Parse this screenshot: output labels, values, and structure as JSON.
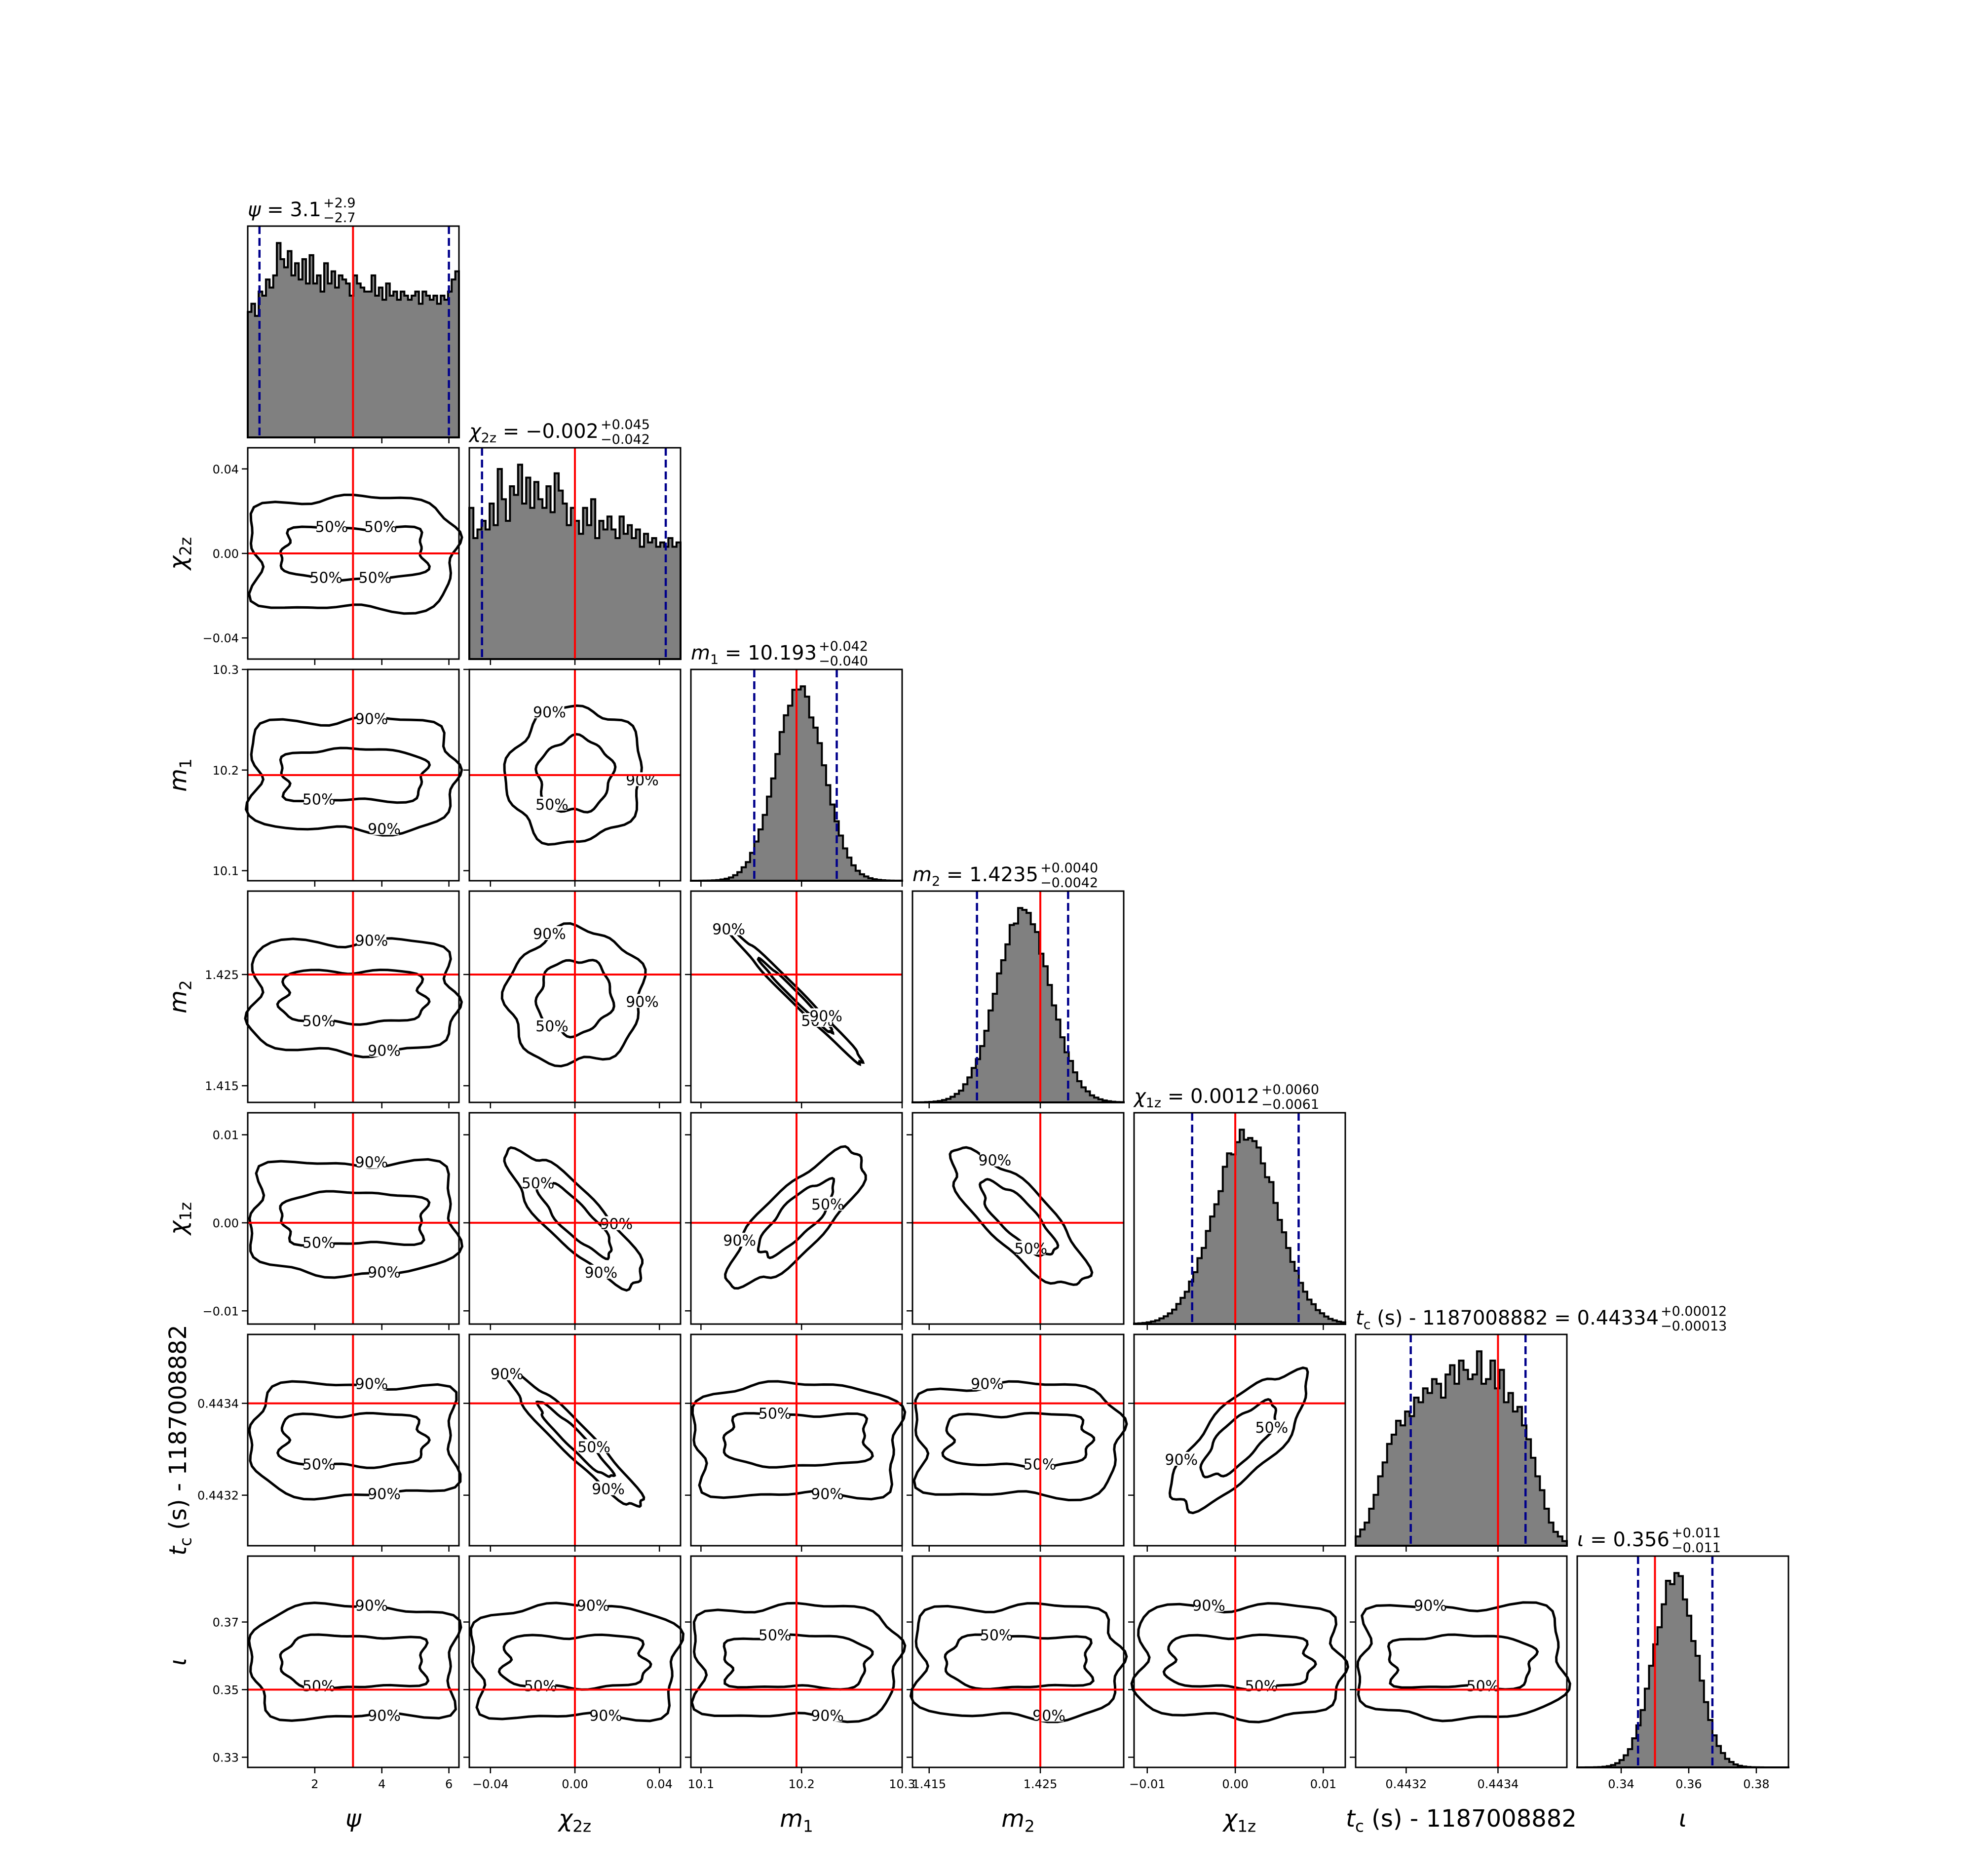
{
  "chart_data": {
    "type": "corner",
    "grid": false,
    "hist_fill": "#808080",
    "truth_color": "#ff0000",
    "interval_color": "#00008b",
    "contour_color": "#000000",
    "contour_levels": [
      "50%",
      "90%"
    ],
    "parameters": [
      {
        "key": "psi",
        "axis_label": "ψ",
        "title": {
          "main": "ψ = 3.1",
          "sup": "+2.9",
          "sub": "−2.7"
        },
        "range": [
          0.0,
          6.3
        ],
        "ticks": [
          2,
          4,
          6
        ],
        "tick_labels": [
          "2",
          "4",
          "6"
        ],
        "truth": 3.14,
        "interval": [
          0.35,
          6.0
        ],
        "hist": [
          0.62,
          0.66,
          0.6,
          0.72,
          0.7,
          0.78,
          0.74,
          0.8,
          0.96,
          0.88,
          0.84,
          0.92,
          0.8,
          0.86,
          0.78,
          0.88,
          0.76,
          0.9,
          0.76,
          0.8,
          0.72,
          0.86,
          0.76,
          0.82,
          0.74,
          0.8,
          0.78,
          0.76,
          0.7,
          0.8,
          0.76,
          0.74,
          0.72,
          0.72,
          0.8,
          0.7,
          0.74,
          0.68,
          0.76,
          0.7,
          0.72,
          0.68,
          0.72,
          0.7,
          0.68,
          0.7,
          0.72,
          0.66,
          0.72,
          0.7,
          0.68,
          0.7,
          0.66,
          0.7,
          0.68,
          0.72,
          0.78,
          0.82
        ]
      },
      {
        "key": "chi2z",
        "axis_label": "χ2z",
        "title": {
          "main": "χ2z = −0.002",
          "sup": "+0.045",
          "sub": "−0.042"
        },
        "range": [
          -0.05,
          0.05
        ],
        "ticks": [
          -0.04,
          0.0,
          0.04
        ],
        "tick_labels": [
          "−0.04",
          "0.00",
          "0.04"
        ],
        "truth": 0.0,
        "interval": [
          -0.044,
          0.043
        ],
        "hist": [
          0.7,
          0.56,
          0.6,
          0.64,
          0.6,
          0.72,
          0.62,
          0.88,
          0.74,
          0.64,
          0.8,
          0.76,
          0.9,
          0.72,
          0.84,
          0.7,
          0.82,
          0.74,
          0.7,
          0.8,
          0.68,
          0.86,
          0.78,
          0.72,
          0.62,
          0.7,
          0.64,
          0.58,
          0.7,
          0.62,
          0.74,
          0.56,
          0.64,
          0.6,
          0.66,
          0.6,
          0.56,
          0.66,
          0.58,
          0.62,
          0.56,
          0.6,
          0.52,
          0.58,
          0.54,
          0.56,
          0.52,
          0.54,
          0.52,
          0.56,
          0.52,
          0.54
        ]
      },
      {
        "key": "m1",
        "axis_label": "m1",
        "title": {
          "main": "m1 = 10.193",
          "sup": "+0.042",
          "sub": "−0.040"
        },
        "range": [
          10.09,
          10.3
        ],
        "ticks": [
          10.1,
          10.2,
          10.3
        ],
        "tick_labels": [
          "10.1",
          "10.2",
          "10.3"
        ],
        "truth": 10.195,
        "interval": [
          10.153,
          10.235
        ],
        "hist_center": 10.198,
        "hist_sigma": 0.024
      },
      {
        "key": "m2",
        "axis_label": "m2",
        "title": {
          "main": "m2 = 1.4235",
          "sup": "+0.0040",
          "sub": "−0.0042"
        },
        "range": [
          1.4135,
          1.4325
        ],
        "ticks": [
          1.415,
          1.425
        ],
        "tick_labels": [
          "1.415",
          "1.425"
        ],
        "truth": 1.425,
        "interval": [
          1.4193,
          1.4275
        ],
        "hist_center": 1.4235,
        "hist_sigma": 0.0024
      },
      {
        "key": "chi1z",
        "axis_label": "χ1z",
        "title": {
          "main": "χ1z = 0.0012",
          "sup": "+0.0060",
          "sub": "−0.0061"
        },
        "range": [
          -0.0115,
          0.0125
        ],
        "ticks": [
          -0.01,
          0.0,
          0.01
        ],
        "tick_labels": [
          "−0.01",
          "0.00",
          "0.01"
        ],
        "truth": 0.0,
        "interval": [
          -0.0049,
          0.0072
        ],
        "hist_center": 0.0012,
        "hist_sigma": 0.0036
      },
      {
        "key": "tc",
        "axis_label": "tc (s) - 1187008882",
        "title": {
          "main": "tc (s) - 1187008882 = 0.44334",
          "sup": "+0.00012",
          "sub": "−0.00013"
        },
        "range": [
          0.44309,
          0.44355
        ],
        "ticks": [
          0.4432,
          0.4434
        ],
        "tick_labels": [
          "0.4432",
          "0.4434"
        ],
        "truth": 0.4434,
        "interval": [
          0.44321,
          0.44346
        ],
        "hist": [
          0.04,
          0.07,
          0.1,
          0.16,
          0.22,
          0.3,
          0.36,
          0.44,
          0.48,
          0.54,
          0.52,
          0.58,
          0.56,
          0.64,
          0.62,
          0.68,
          0.66,
          0.72,
          0.7,
          0.64,
          0.74,
          0.78,
          0.7,
          0.8,
          0.76,
          0.72,
          0.74,
          0.84,
          0.7,
          0.72,
          0.8,
          0.68,
          0.76,
          0.62,
          0.66,
          0.58,
          0.6,
          0.52,
          0.46,
          0.38,
          0.3,
          0.24,
          0.16,
          0.1,
          0.06,
          0.04,
          0.02
        ]
      },
      {
        "key": "iota",
        "axis_label": "ι",
        "title": {
          "main": "ι = 0.356",
          "sup": "+0.011",
          "sub": "−0.011"
        },
        "range": [
          0.327,
          0.3895
        ],
        "ticks": [
          0.34,
          0.36,
          0.38
        ],
        "tick_labels": [
          "0.34",
          "0.36",
          "0.38"
        ],
        "truth": 0.35,
        "interval": [
          0.345,
          0.367
        ],
        "hist_center": 0.356,
        "hist_sigma": 0.0062
      }
    ],
    "panel_ticks": {
      "y": {
        "chi2z": [
          {
            "v": 0.04,
            "label": "0.04"
          },
          {
            "v": 0.0,
            "label": "0.00"
          },
          {
            "v": -0.04,
            "label": "−0.04"
          }
        ],
        "m1": [
          {
            "v": 10.3,
            "label": "10.3"
          },
          {
            "v": 10.2,
            "label": "10.2"
          },
          {
            "v": 10.1,
            "label": "10.1"
          }
        ],
        "m2": [
          {
            "v": 1.425,
            "label": "1.425"
          },
          {
            "v": 1.415,
            "label": "1.415"
          }
        ],
        "chi1z": [
          {
            "v": 0.01,
            "label": "0.01"
          },
          {
            "v": 0.0,
            "label": "0.00"
          },
          {
            "v": -0.01,
            "label": "−0.01"
          }
        ],
        "tc": [
          {
            "v": 0.4434,
            "label": "0.4434"
          },
          {
            "v": 0.4432,
            "label": "0.4432"
          }
        ],
        "iota": [
          {
            "v": 0.37,
            "label": "0.37"
          },
          {
            "v": 0.35,
            "label": "0.35"
          },
          {
            "v": 0.33,
            "label": "0.33"
          }
        ]
      }
    },
    "pairs": [
      {
        "x": "psi",
        "y": "chi2z",
        "corr": 0.0,
        "labels": [
          [
            "50%",
            0.5
          ],
          [
            "50%",
            0.5
          ],
          [
            "50%",
            0.5
          ],
          [
            "50%",
            0.5
          ]
        ]
      },
      {
        "x": "psi",
        "y": "m1",
        "corr": 0.0,
        "labels": [
          [
            "90%",
            0.9
          ],
          [
            "50%",
            0.5
          ],
          [
            "90%",
            0.9
          ]
        ]
      },
      {
        "x": "chi2z",
        "y": "m1",
        "corr": 0.05,
        "labels": [
          [
            "90%",
            0.9
          ],
          [
            "50%",
            0.5
          ],
          [
            "90%",
            0.9
          ]
        ]
      },
      {
        "x": "m1",
        "y": "m2",
        "corr": -0.99,
        "labels": [
          [
            "50%",
            0.5
          ],
          [
            "90%",
            0.9
          ],
          [
            "90%",
            0.9
          ]
        ]
      },
      {
        "x": "psi",
        "y": "m2",
        "corr": 0.0,
        "labels": [
          [
            "90%",
            0.9
          ],
          [
            "50%",
            0.5
          ],
          [
            "90%",
            0.9
          ]
        ]
      },
      {
        "x": "chi2z",
        "y": "m2",
        "corr": 0.05,
        "labels": [
          [
            "90%",
            0.9
          ],
          [
            "50%",
            0.5
          ],
          [
            "90%",
            0.9
          ]
        ]
      },
      {
        "x": "psi",
        "y": "chi1z",
        "corr": 0.0,
        "labels": [
          [
            "90%",
            0.9
          ],
          [
            "50%",
            0.5
          ],
          [
            "90%",
            0.9
          ]
        ]
      },
      {
        "x": "chi2z",
        "y": "chi1z",
        "corr": -0.85,
        "labels": [
          [
            "90%",
            0.9
          ],
          [
            "50%",
            0.5
          ],
          [
            "90%",
            0.9
          ]
        ]
      },
      {
        "x": "m1",
        "y": "chi1z",
        "corr": 0.8,
        "labels": [
          [
            "50%",
            0.5
          ],
          [
            "90%",
            0.9
          ]
        ]
      },
      {
        "x": "m2",
        "y": "chi1z",
        "corr": -0.8,
        "labels": [
          [
            "50%",
            0.5
          ],
          [
            "90%",
            0.9
          ]
        ]
      },
      {
        "x": "psi",
        "y": "tc",
        "corr": 0.0,
        "labels": [
          [
            "90%",
            0.9
          ],
          [
            "50%",
            0.5
          ],
          [
            "90%",
            0.9
          ]
        ]
      },
      {
        "x": "chi2z",
        "y": "tc",
        "corr": -0.95,
        "labels": [
          [
            "90%",
            0.9
          ],
          [
            "90%",
            0.9
          ],
          [
            "50%",
            0.5
          ]
        ]
      },
      {
        "x": "m1",
        "y": "tc",
        "corr": 0.0,
        "labels": [
          [
            "90%",
            0.9
          ],
          [
            "50%",
            0.5
          ]
        ]
      },
      {
        "x": "m2",
        "y": "tc",
        "corr": 0.0,
        "labels": [
          [
            "50%",
            0.5
          ],
          [
            "90%",
            0.9
          ]
        ]
      },
      {
        "x": "chi1z",
        "y": "tc",
        "corr": 0.75,
        "labels": [
          [
            "50%",
            0.5
          ],
          [
            "90%",
            0.9
          ]
        ]
      },
      {
        "x": "psi",
        "y": "iota",
        "corr": 0.0,
        "labels": [
          [
            "90%",
            0.9
          ],
          [
            "50%",
            0.5
          ],
          [
            "90%",
            0.9
          ]
        ]
      },
      {
        "x": "chi2z",
        "y": "iota",
        "corr": 0.0,
        "labels": [
          [
            "90%",
            0.9
          ],
          [
            "50%",
            0.5
          ],
          [
            "90%",
            0.9
          ]
        ]
      },
      {
        "x": "m1",
        "y": "iota",
        "corr": 0.0,
        "labels": [
          [
            "90%",
            0.9
          ],
          [
            "50%",
            0.5
          ]
        ]
      },
      {
        "x": "m2",
        "y": "iota",
        "corr": 0.0,
        "labels": [
          [
            "90%",
            0.9
          ],
          [
            "50%",
            0.5
          ]
        ]
      },
      {
        "x": "chi1z",
        "y": "iota",
        "corr": 0.0,
        "labels": [
          [
            "50%",
            0.5
          ],
          [
            "90%",
            0.9
          ]
        ]
      },
      {
        "x": "tc",
        "y": "iota",
        "corr": 0.0,
        "labels": [
          [
            "50%",
            0.5
          ],
          [
            "90%",
            0.9
          ]
        ]
      }
    ]
  }
}
